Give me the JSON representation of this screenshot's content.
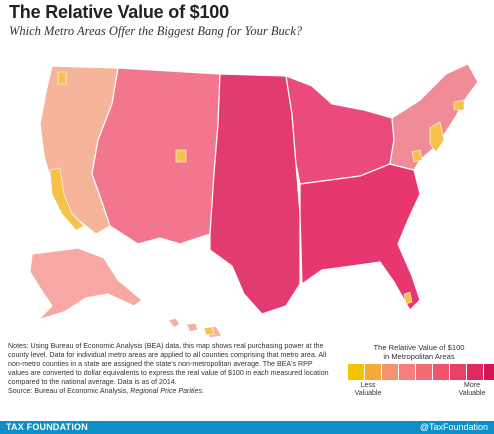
{
  "title": "The Relative Value of $100",
  "subtitle": "Which Metro Areas Offer the Biggest Bang for Your Buck?",
  "notes": {
    "text": "Notes: Using Bureau of Economic Analysis (BEA) data, this map shows real purchasing power at the county level. Data for individual metro areas are applied to all counties comprising that metro area. All non-metro counties in a state are assigned the state's non-metropolitan average. The BEA's RPP values are converted to dollar equivalents to express the real value of $100 in each measured location compared to the national average. Data is as of 2014.",
    "source_prefix": "Source: Bureau of Economic Analysis, ",
    "source_title": "Regional Price Parities."
  },
  "legend": {
    "title_line1": "The Relative Value of $100",
    "title_line2": "in Metropolitan Areas",
    "low_label": "Less Valuable",
    "high_label": "More Valuable",
    "colors": [
      "#f5c400",
      "#f5a93a",
      "#f59270",
      "#f57f7f",
      "#f26a72",
      "#ee556c",
      "#e84068",
      "#e02a5f",
      "#d61455"
    ]
  },
  "map": {
    "state_colors": {
      "west_coast": "#f6b49a",
      "mountain": "#f2768e",
      "plains": "#e23b70",
      "midwest": "#ea4a7c",
      "south": "#e8376f",
      "northeast": "#f08c98",
      "alaska": "#f7a8a4",
      "hawaii": "#f7b2a4"
    },
    "high_cost_color": "#f6c24a",
    "border_color": "#ffffff"
  },
  "footer": {
    "brand": "TAX FOUNDATION",
    "handle": "@TaxFoundation"
  }
}
